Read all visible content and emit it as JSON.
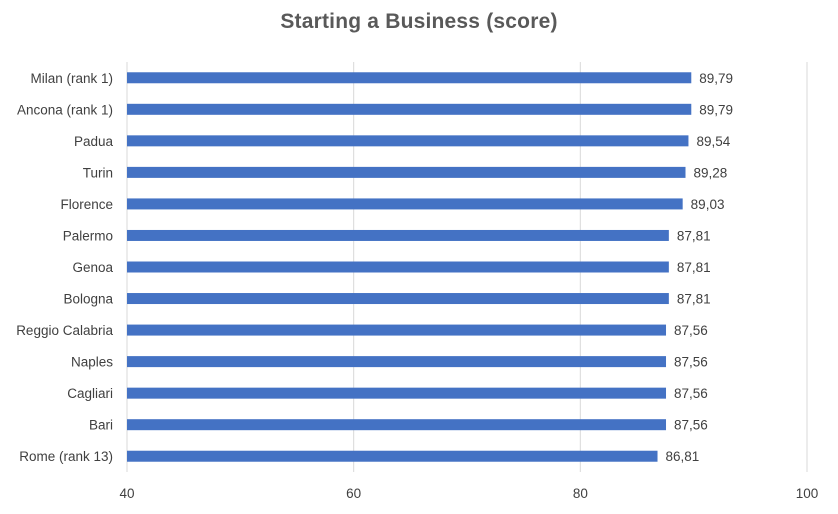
{
  "chart_data": {
    "type": "bar",
    "orientation": "horizontal",
    "title": "Starting a Business (score)",
    "categories": [
      "Milan (rank 1)",
      "Ancona (rank 1)",
      "Padua",
      "Turin",
      "Florence",
      "Palermo",
      "Genoa",
      "Bologna",
      "Reggio Calabria",
      "Naples",
      "Cagliari",
      "Bari",
      "Rome (rank 13)"
    ],
    "values": [
      89.79,
      89.79,
      89.54,
      89.28,
      89.03,
      87.81,
      87.81,
      87.81,
      87.56,
      87.56,
      87.56,
      87.56,
      86.81
    ],
    "data_labels": [
      "89,79",
      "89,79",
      "89,54",
      "89,28",
      "89,03",
      "87,81",
      "87,81",
      "87,81",
      "87,56",
      "87,56",
      "87,56",
      "87,56",
      "86,81"
    ],
    "xlim": [
      40,
      100
    ],
    "xticks": [
      40,
      60,
      80,
      100
    ],
    "xtick_labels": [
      "40",
      "60",
      "80",
      "100"
    ],
    "xlabel": "",
    "ylabel": "",
    "grid": "vertical",
    "legend": "none",
    "bar_color": "#4472C4",
    "grid_color": "#D9D9D9",
    "text_color": "#404040",
    "title_color": "#595959"
  }
}
